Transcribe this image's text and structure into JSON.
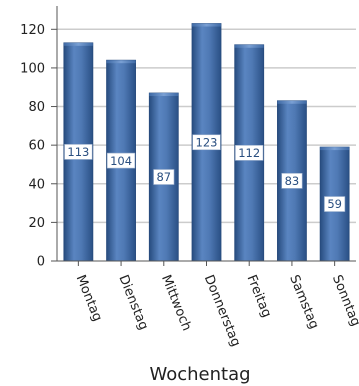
{
  "chart_data": {
    "type": "bar",
    "categories": [
      "Montag",
      "Dienstag",
      "Mittwoch",
      "Donnerstag",
      "Freitag",
      "Samstag",
      "Sonntag"
    ],
    "values": [
      113,
      104,
      87,
      123,
      112,
      83,
      59
    ],
    "data_labels": [
      "113",
      "104",
      "87",
      "123",
      "112",
      "83",
      "59"
    ],
    "xlabel": "Wochentag",
    "ylabel": "",
    "ylim": [
      0,
      130
    ],
    "yticks": [
      "0",
      "20",
      "40",
      "60",
      "80",
      "100",
      "120"
    ],
    "grid": true,
    "legend": "none"
  },
  "colors": {
    "bar_center": "#5b86c2",
    "bar_edge": "#264a7c",
    "grid": "#cccccc",
    "axis": "#555555",
    "label_text": "#2a4f80"
  }
}
